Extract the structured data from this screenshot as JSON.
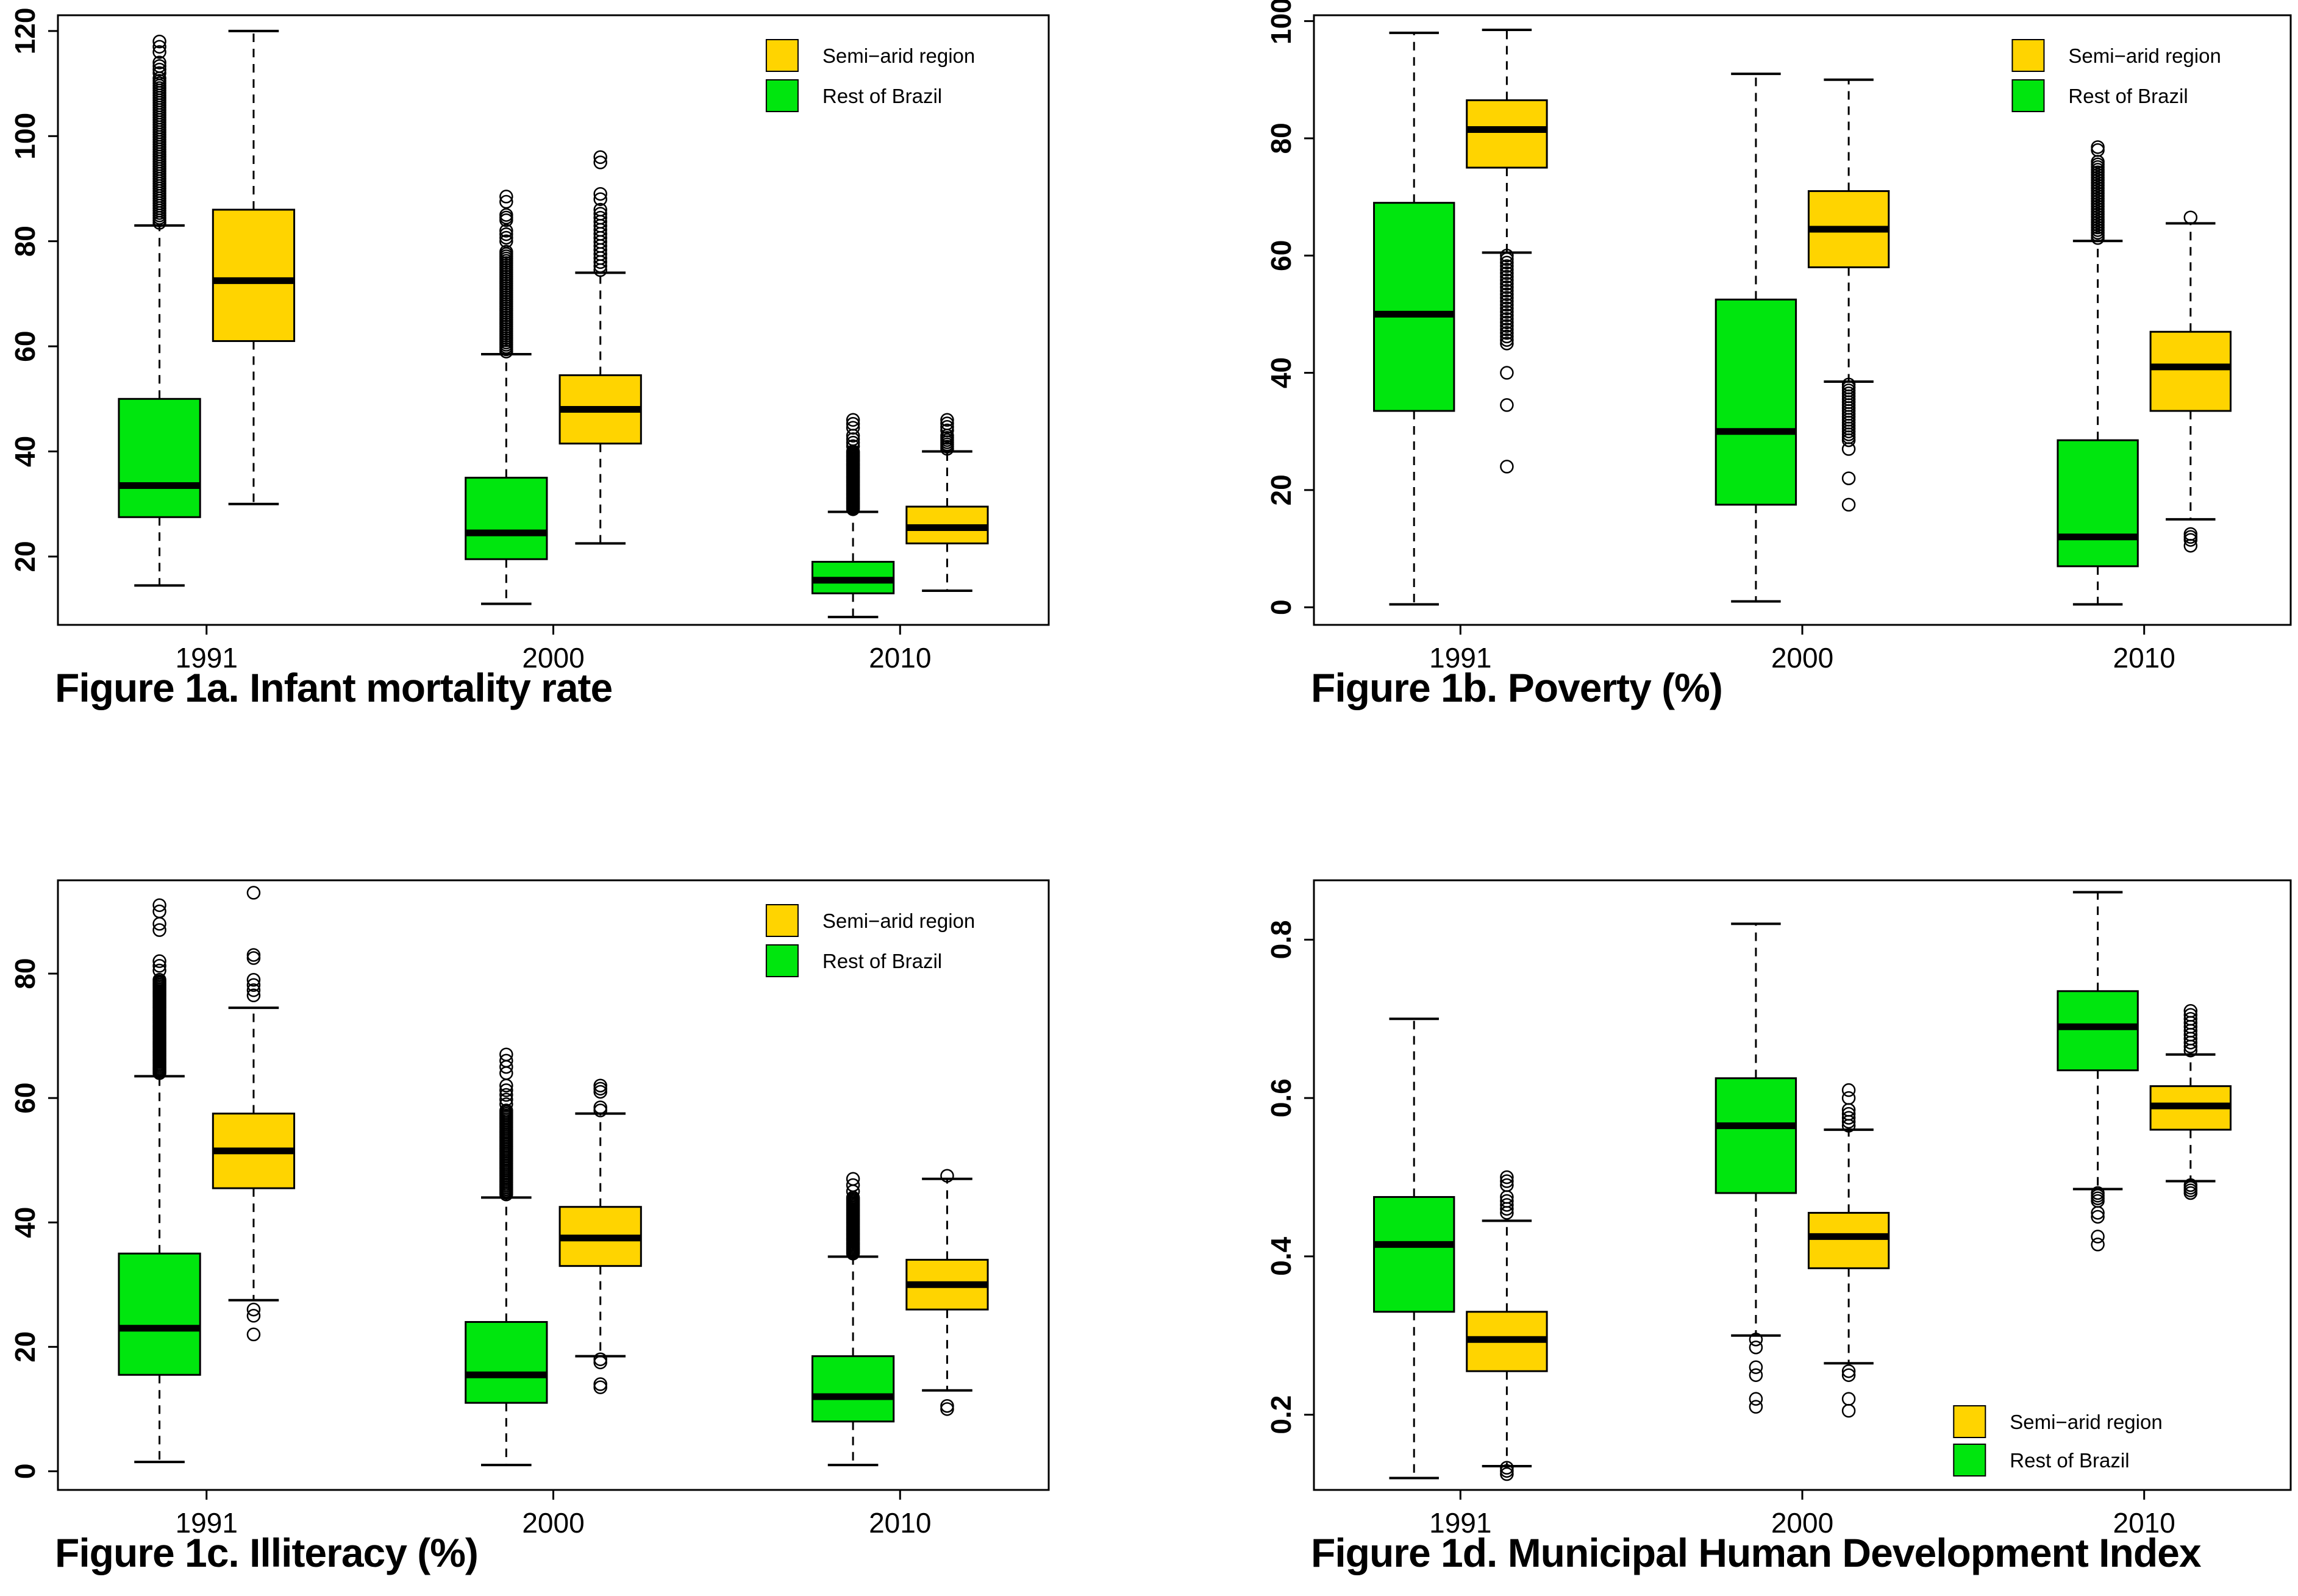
{
  "page": {
    "background": "#ffffff"
  },
  "colors": {
    "semi_arid": "#ffd400",
    "rest": "#00e60e",
    "box_border": "#000000",
    "median": "#000000",
    "axis": "#000000"
  },
  "legend": {
    "items": [
      {
        "key": "semi_arid",
        "label": "Semi−arid region"
      },
      {
        "key": "rest",
        "label": "Rest of Brazil"
      }
    ]
  },
  "chart_data": [
    {
      "id": "1a",
      "type": "boxplot",
      "caption": "Figure 1a. Infant mortality rate",
      "categories": [
        "1991",
        "2000",
        "2010"
      ],
      "ylim": [
        7,
        123
      ],
      "yticks": [
        20,
        40,
        60,
        80,
        100,
        120
      ],
      "grid": false,
      "legend_pos": "top-right",
      "groups": [
        {
          "year": "1991",
          "boxes": [
            {
              "series": "rest",
              "whislo": 14.5,
              "q1": 27.5,
              "med": 33.5,
              "q3": 50,
              "whishi": 83,
              "outliers": [
                {
                  "from": 83.5,
                  "to": 111,
                  "n": 60
                },
                {
                  "from": 112,
                  "to": 114,
                  "n": 4
                },
                {
                  "from": 116,
                  "to": 118,
                  "n": 3
                }
              ]
            },
            {
              "series": "semi_arid",
              "whislo": 30,
              "q1": 61,
              "med": 72.5,
              "q3": 86,
              "whishi": 120,
              "outliers": []
            }
          ]
        },
        {
          "year": "2000",
          "boxes": [
            {
              "series": "rest",
              "whislo": 11,
              "q1": 19.5,
              "med": 24.5,
              "q3": 35,
              "whishi": 58.5,
              "outliers": [
                {
                  "from": 59,
                  "to": 78,
                  "n": 45
                },
                {
                  "from": 80,
                  "to": 82,
                  "n": 4
                },
                {
                  "from": 84,
                  "to": 85,
                  "n": 3
                },
                {
                  "from": 87.5,
                  "to": 88.5,
                  "n": 2
                }
              ]
            },
            {
              "series": "semi_arid",
              "whislo": 22.5,
              "q1": 41.5,
              "med": 48,
              "q3": 54.5,
              "whishi": 74,
              "outliers": [
                {
                  "from": 74.5,
                  "to": 86,
                  "n": 16
                },
                {
                  "from": 88,
                  "to": 89,
                  "n": 2
                },
                {
                  "from": 95,
                  "to": 96,
                  "n": 2
                }
              ]
            }
          ]
        },
        {
          "year": "2010",
          "boxes": [
            {
              "series": "rest",
              "whislo": 8.5,
              "q1": 13,
              "med": 15.5,
              "q3": 19,
              "whishi": 28.5,
              "outliers": [
                {
                  "from": 29,
                  "to": 40,
                  "n": 45
                },
                {
                  "from": 41,
                  "to": 43,
                  "n": 4
                },
                {
                  "from": 44.5,
                  "to": 46,
                  "n": 3
                }
              ]
            },
            {
              "series": "semi_arid",
              "whislo": 13.5,
              "q1": 22.5,
              "med": 25.5,
              "q3": 29.5,
              "whishi": 40,
              "outliers": [
                {
                  "from": 40.5,
                  "to": 43,
                  "n": 7
                },
                {
                  "from": 44,
                  "to": 46,
                  "n": 4
                }
              ]
            }
          ]
        }
      ]
    },
    {
      "id": "1b",
      "type": "boxplot",
      "caption": "Figure 1b. Poverty (%)",
      "categories": [
        "1991",
        "2000",
        "2010"
      ],
      "ylim": [
        -3,
        101
      ],
      "yticks": [
        0,
        20,
        40,
        60,
        80,
        100
      ],
      "grid": false,
      "legend_pos": "top-right",
      "groups": [
        {
          "year": "1991",
          "boxes": [
            {
              "series": "rest",
              "whislo": 0.5,
              "q1": 33.5,
              "med": 50,
              "q3": 69,
              "whishi": 98,
              "outliers": []
            },
            {
              "series": "semi_arid",
              "whislo": 60.5,
              "q1": 75,
              "med": 81.5,
              "q3": 86.5,
              "whishi": 98.5,
              "outliers": [
                {
                  "from": 45,
                  "to": 60,
                  "n": 26
                },
                {
                  "from": 40,
                  "to": 40,
                  "n": 1
                },
                {
                  "from": 34.5,
                  "to": 34.5,
                  "n": 1
                },
                {
                  "from": 24,
                  "to": 24,
                  "n": 1
                }
              ]
            }
          ]
        },
        {
          "year": "2000",
          "boxes": [
            {
              "series": "rest",
              "whislo": 1,
              "q1": 17.5,
              "med": 30,
              "q3": 52.5,
              "whishi": 91,
              "outliers": []
            },
            {
              "series": "semi_arid",
              "whislo": 38.5,
              "q1": 58,
              "med": 64.5,
              "q3": 71,
              "whishi": 90,
              "outliers": [
                {
                  "from": 28.5,
                  "to": 38,
                  "n": 20
                },
                {
                  "from": 27,
                  "to": 27,
                  "n": 1
                },
                {
                  "from": 22,
                  "to": 22,
                  "n": 1
                },
                {
                  "from": 17.5,
                  "to": 17.5,
                  "n": 1
                }
              ]
            }
          ]
        },
        {
          "year": "2010",
          "boxes": [
            {
              "series": "rest",
              "whislo": 0.5,
              "q1": 7,
              "med": 12,
              "q3": 28.5,
              "whishi": 62.5,
              "outliers": [
                {
                  "from": 63,
                  "to": 76,
                  "n": 30
                },
                {
                  "from": 78,
                  "to": 78.5,
                  "n": 2
                }
              ]
            },
            {
              "series": "semi_arid",
              "whislo": 15,
              "q1": 33.5,
              "med": 41,
              "q3": 47,
              "whishi": 65.5,
              "outliers": [
                {
                  "from": 66.5,
                  "to": 66.5,
                  "n": 1
                },
                {
                  "from": 11.5,
                  "to": 12.5,
                  "n": 3
                },
                {
                  "from": 10.5,
                  "to": 10.5,
                  "n": 1
                }
              ]
            }
          ]
        }
      ]
    },
    {
      "id": "1c",
      "type": "boxplot",
      "caption": "Figure 1c. Illiteracy (%)",
      "categories": [
        "1991",
        "2000",
        "2010"
      ],
      "ylim": [
        -3,
        95
      ],
      "yticks": [
        0,
        20,
        40,
        60,
        80
      ],
      "grid": false,
      "legend_pos": "top-right",
      "groups": [
        {
          "year": "1991",
          "boxes": [
            {
              "series": "rest",
              "whislo": 1.5,
              "q1": 15.5,
              "med": 23,
              "q3": 35,
              "whishi": 63.5,
              "outliers": [
                {
                  "from": 64,
                  "to": 79,
                  "n": 60
                },
                {
                  "from": 80.5,
                  "to": 82,
                  "n": 3
                },
                {
                  "from": 87,
                  "to": 88,
                  "n": 2
                },
                {
                  "from": 90,
                  "to": 91,
                  "n": 2
                }
              ]
            },
            {
              "series": "semi_arid",
              "whislo": 27.5,
              "q1": 45.5,
              "med": 51.5,
              "q3": 57.5,
              "whishi": 74.5,
              "outliers": [
                {
                  "from": 76.5,
                  "to": 79,
                  "n": 4
                },
                {
                  "from": 82.5,
                  "to": 83,
                  "n": 2
                },
                {
                  "from": 93,
                  "to": 93,
                  "n": 1
                },
                {
                  "from": 25,
                  "to": 26,
                  "n": 2
                },
                {
                  "from": 22,
                  "to": 22,
                  "n": 1
                }
              ]
            }
          ]
        },
        {
          "year": "2000",
          "boxes": [
            {
              "series": "rest",
              "whislo": 1,
              "q1": 11,
              "med": 15.5,
              "q3": 24,
              "whishi": 44,
              "outliers": [
                {
                  "from": 44.5,
                  "to": 58,
                  "n": 50
                },
                {
                  "from": 59,
                  "to": 62,
                  "n": 5
                },
                {
                  "from": 64,
                  "to": 67,
                  "n": 4
                }
              ]
            },
            {
              "series": "semi_arid",
              "whislo": 18.5,
              "q1": 33,
              "med": 37.5,
              "q3": 42.5,
              "whishi": 57.5,
              "outliers": [
                {
                  "from": 58,
                  "to": 58.5,
                  "n": 2
                },
                {
                  "from": 61,
                  "to": 62,
                  "n": 3
                },
                {
                  "from": 18,
                  "to": 18,
                  "n": 1
                },
                {
                  "from": 17.5,
                  "to": 17.5,
                  "n": 1
                },
                {
                  "from": 13.5,
                  "to": 14,
                  "n": 2
                }
              ]
            }
          ]
        },
        {
          "year": "2010",
          "boxes": [
            {
              "series": "rest",
              "whislo": 1,
              "q1": 8,
              "med": 12,
              "q3": 18.5,
              "whishi": 34.5,
              "outliers": [
                {
                  "from": 35,
                  "to": 44,
                  "n": 40
                },
                {
                  "from": 45,
                  "to": 47,
                  "n": 3
                }
              ]
            },
            {
              "series": "semi_arid",
              "whislo": 13,
              "q1": 26,
              "med": 30,
              "q3": 34,
              "whishi": 47,
              "outliers": [
                {
                  "from": 47.5,
                  "to": 47.5,
                  "n": 1
                },
                {
                  "from": 10,
                  "to": 10.5,
                  "n": 2
                }
              ]
            }
          ]
        }
      ]
    },
    {
      "id": "1d",
      "type": "boxplot",
      "caption": "Figure 1d. Municipal Human Development Index",
      "categories": [
        "1991",
        "2000",
        "2010"
      ],
      "ylim": [
        0.105,
        0.875
      ],
      "yticks": [
        0.2,
        0.4,
        0.6,
        0.8
      ],
      "grid": false,
      "legend_pos": "bottom-right",
      "groups": [
        {
          "year": "1991",
          "boxes": [
            {
              "series": "rest",
              "whislo": 0.12,
              "q1": 0.33,
              "med": 0.415,
              "q3": 0.475,
              "whishi": 0.7,
              "outliers": []
            },
            {
              "series": "semi_arid",
              "whislo": 0.135,
              "q1": 0.255,
              "med": 0.295,
              "q3": 0.33,
              "whishi": 0.445,
              "outliers": [
                {
                  "from": 0.455,
                  "to": 0.475,
                  "n": 5
                },
                {
                  "from": 0.49,
                  "to": 0.5,
                  "n": 3
                },
                {
                  "from": 0.125,
                  "to": 0.133,
                  "n": 3
                }
              ]
            }
          ]
        },
        {
          "year": "2000",
          "boxes": [
            {
              "series": "rest",
              "whislo": 0.3,
              "q1": 0.48,
              "med": 0.565,
              "q3": 0.625,
              "whishi": 0.82,
              "outliers": [
                {
                  "from": 0.285,
                  "to": 0.295,
                  "n": 2
                },
                {
                  "from": 0.25,
                  "to": 0.26,
                  "n": 2
                },
                {
                  "from": 0.21,
                  "to": 0.22,
                  "n": 2
                }
              ]
            },
            {
              "series": "semi_arid",
              "whislo": 0.265,
              "q1": 0.385,
              "med": 0.425,
              "q3": 0.455,
              "whishi": 0.56,
              "outliers": [
                {
                  "from": 0.565,
                  "to": 0.585,
                  "n": 5
                },
                {
                  "from": 0.6,
                  "to": 0.61,
                  "n": 2
                },
                {
                  "from": 0.25,
                  "to": 0.255,
                  "n": 2
                },
                {
                  "from": 0.22,
                  "to": 0.22,
                  "n": 1
                },
                {
                  "from": 0.205,
                  "to": 0.205,
                  "n": 1
                }
              ]
            }
          ]
        },
        {
          "year": "2010",
          "boxes": [
            {
              "series": "rest",
              "whislo": 0.485,
              "q1": 0.635,
              "med": 0.69,
              "q3": 0.735,
              "whishi": 0.86,
              "outliers": [
                {
                  "from": 0.47,
                  "to": 0.48,
                  "n": 4
                },
                {
                  "from": 0.45,
                  "to": 0.455,
                  "n": 2
                },
                {
                  "from": 0.415,
                  "to": 0.425,
                  "n": 2
                }
              ]
            },
            {
              "series": "semi_arid",
              "whislo": 0.495,
              "q1": 0.56,
              "med": 0.59,
              "q3": 0.615,
              "whishi": 0.655,
              "outliers": [
                {
                  "from": 0.66,
                  "to": 0.695,
                  "n": 8
                },
                {
                  "from": 0.7,
                  "to": 0.71,
                  "n": 3
                },
                {
                  "from": 0.48,
                  "to": 0.49,
                  "n": 4
                }
              ]
            }
          ]
        }
      ]
    }
  ]
}
